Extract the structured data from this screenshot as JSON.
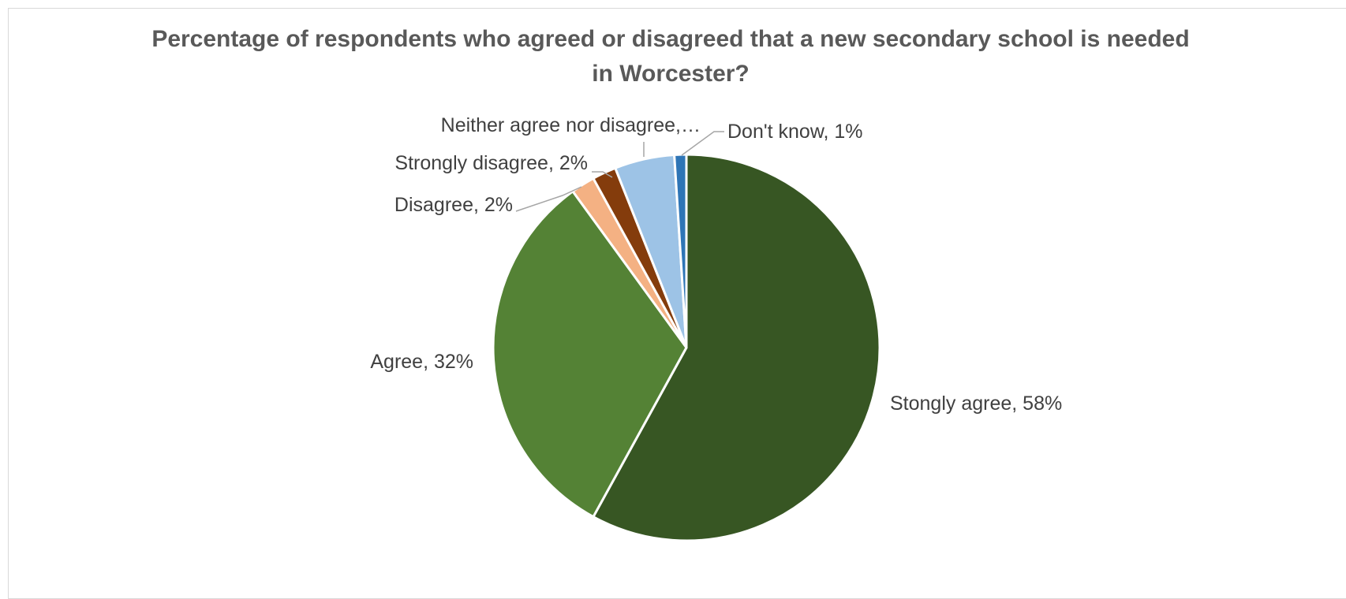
{
  "chart_data": {
    "type": "pie",
    "title": "Percentage of respondents who agreed or disagreed that a new secondary school is needed in Worcester?",
    "slices": [
      {
        "name": "Stongly agree",
        "value": 58,
        "label": "Stongly agree, 58%",
        "color": "#375623"
      },
      {
        "name": "Agree",
        "value": 32,
        "label": "Agree, 32%",
        "color": "#548235"
      },
      {
        "name": "Disagree",
        "value": 2,
        "label": "Disagree, 2%",
        "color": "#f4b183"
      },
      {
        "name": "Strongly disagree",
        "value": 2,
        "label": "Strongly disagree, 2%",
        "color": "#843c0c"
      },
      {
        "name": "Neither agree nor disagree",
        "value": 5,
        "label": "Neither agree nor disagree,…",
        "color": "#9dc3e6"
      },
      {
        "name": "Don't know",
        "value": 1,
        "label": "Don't know, 1%",
        "color": "#2e75b6"
      }
    ]
  }
}
